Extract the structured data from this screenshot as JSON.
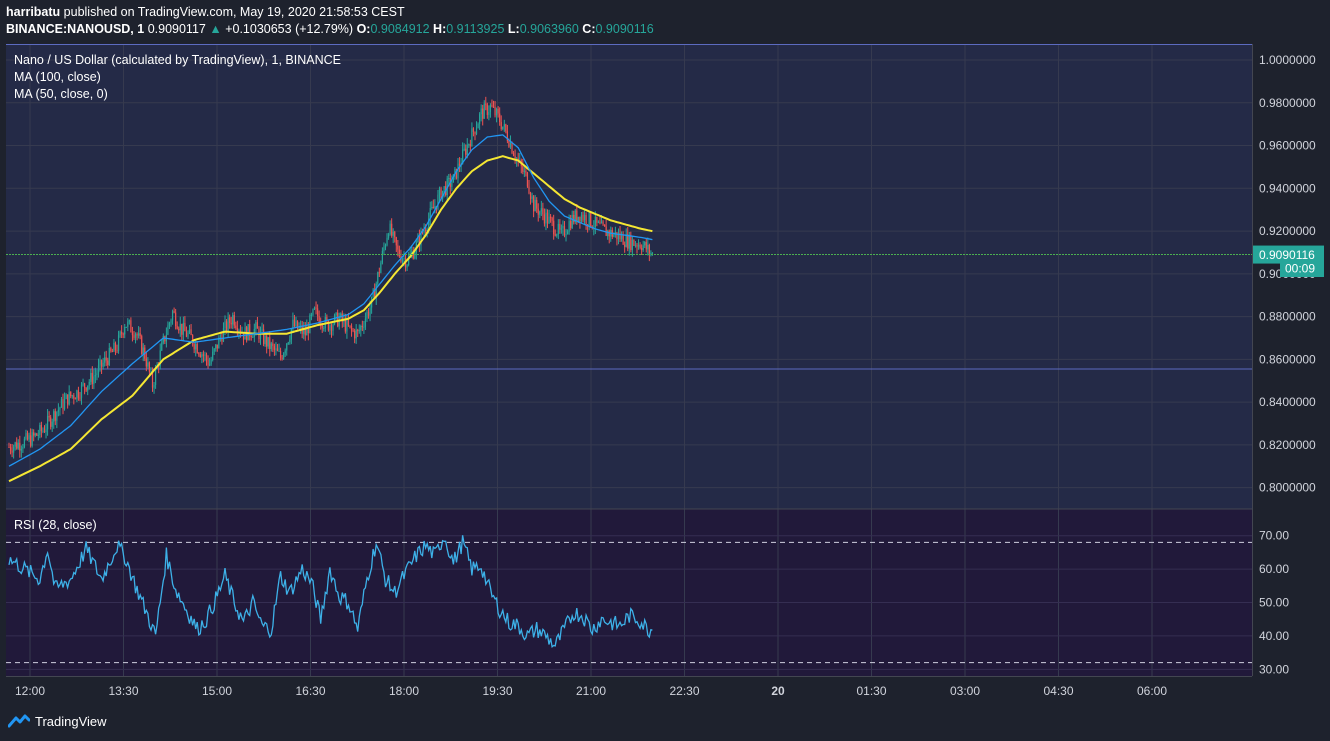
{
  "header": {
    "line1_user": "harribatu",
    "line1_rest": " published on TradingView.com, May 19, 2020 21:58:53 CEST",
    "symbol": "BINANCE:NANOUSD, 1",
    "last": "0.9090117",
    "change": "+0.1030653 (+12.79%)",
    "o_label": "O:",
    "o_value": "0.9084912",
    "h_label": "H:",
    "h_value": "0.9113925",
    "l_label": "L:",
    "l_value": "0.9063960",
    "c_label": "C:",
    "c_value": "0.9090116"
  },
  "price_pane": {
    "title": "Nano / US Dollar (calculated by TradingView), 1, BINANCE",
    "indicator1": "MA (100, close)",
    "indicator2": "MA (50, close, 0)",
    "price_badge": "0.9090116",
    "countdown_badge": "00:09"
  },
  "rsi_pane": {
    "title": "RSI (28, close)"
  },
  "footer": {
    "brand": "TradingView"
  },
  "colors": {
    "background": "#1e222d",
    "price_pane_bg": "#242a47",
    "rsi_pane_bg": "#21193a",
    "candle_up": "#26a69a",
    "candle_down": "#ef5350",
    "ma100": "#f5e733",
    "ma50": "#2196f3",
    "rsi_line": "#3db1e8",
    "last_price_line": "#4caf50"
  },
  "chart_data": {
    "type": "candlestick",
    "x_tick_labels": [
      "12:00",
      "13:30",
      "15:00",
      "16:30",
      "18:00",
      "19:30",
      "21:00",
      "22:30",
      "20",
      "01:30",
      "03:00",
      "04:30",
      "06:00"
    ],
    "price_axis": {
      "ylim": [
        0.79,
        1.0075
      ],
      "tick_labels": [
        "1.0000000",
        "0.9800000",
        "0.9600000",
        "0.9400000",
        "0.9200000",
        "0.9000000",
        "0.8800000",
        "0.8600000",
        "0.8400000",
        "0.8200000",
        "0.8000000"
      ],
      "tick_values": [
        1.0,
        0.98,
        0.96,
        0.94,
        0.92,
        0.9,
        0.88,
        0.86,
        0.84,
        0.82,
        0.8
      ]
    },
    "rsi_axis": {
      "ylim": [
        28,
        78
      ],
      "tick_labels": [
        "70.00",
        "60.00",
        "50.00",
        "40.00",
        "30.00"
      ],
      "tick_values": [
        70,
        60,
        50,
        40,
        30
      ],
      "bands": [
        68,
        32
      ]
    },
    "horizontal_lines": [
      0.8555
    ],
    "last_price": 0.9090116,
    "price_anchors": [
      [
        0,
        0.819
      ],
      [
        8,
        0.821
      ],
      [
        15,
        0.823
      ],
      [
        22,
        0.827
      ],
      [
        30,
        0.835
      ],
      [
        38,
        0.842
      ],
      [
        45,
        0.845
      ],
      [
        55,
        0.852
      ],
      [
        62,
        0.859
      ],
      [
        70,
        0.866
      ],
      [
        75,
        0.877
      ],
      [
        82,
        0.873
      ],
      [
        88,
        0.862
      ],
      [
        93,
        0.848
      ],
      [
        100,
        0.868
      ],
      [
        106,
        0.882
      ],
      [
        112,
        0.874
      ],
      [
        118,
        0.87
      ],
      [
        124,
        0.864
      ],
      [
        130,
        0.858
      ],
      [
        138,
        0.872
      ],
      [
        145,
        0.88
      ],
      [
        152,
        0.872
      ],
      [
        160,
        0.874
      ],
      [
        168,
        0.867
      ],
      [
        176,
        0.861
      ],
      [
        184,
        0.876
      ],
      [
        192,
        0.872
      ],
      [
        198,
        0.882
      ],
      [
        206,
        0.876
      ],
      [
        214,
        0.879
      ],
      [
        222,
        0.873
      ],
      [
        226,
        0.872
      ],
      [
        235,
        0.886
      ],
      [
        240,
        0.902
      ],
      [
        246,
        0.922
      ],
      [
        252,
        0.91
      ],
      [
        258,
        0.906
      ],
      [
        264,
        0.913
      ],
      [
        272,
        0.926
      ],
      [
        280,
        0.938
      ],
      [
        288,
        0.944
      ],
      [
        294,
        0.955
      ],
      [
        300,
        0.965
      ],
      [
        306,
        0.975
      ],
      [
        312,
        0.978
      ],
      [
        318,
        0.972
      ],
      [
        324,
        0.963
      ],
      [
        330,
        0.952
      ],
      [
        336,
        0.944
      ],
      [
        340,
        0.932
      ],
      [
        346,
        0.928
      ],
      [
        352,
        0.923
      ],
      [
        358,
        0.918
      ],
      [
        364,
        0.925
      ],
      [
        370,
        0.928
      ],
      [
        378,
        0.924
      ],
      [
        386,
        0.92
      ],
      [
        394,
        0.918
      ],
      [
        402,
        0.915
      ],
      [
        410,
        0.914
      ],
      [
        417,
        0.909
      ]
    ],
    "rsi_anchors": [
      [
        0,
        63
      ],
      [
        10,
        60
      ],
      [
        20,
        57
      ],
      [
        25,
        66
      ],
      [
        30,
        54
      ],
      [
        40,
        57
      ],
      [
        50,
        66
      ],
      [
        60,
        57
      ],
      [
        70,
        67
      ],
      [
        75,
        64
      ],
      [
        82,
        55
      ],
      [
        90,
        46
      ],
      [
        95,
        40
      ],
      [
        102,
        64
      ],
      [
        108,
        54
      ],
      [
        116,
        47
      ],
      [
        122,
        42
      ],
      [
        128,
        45
      ],
      [
        135,
        52
      ],
      [
        140,
        58
      ],
      [
        146,
        50
      ],
      [
        152,
        44
      ],
      [
        158,
        50
      ],
      [
        164,
        43
      ],
      [
        170,
        42
      ],
      [
        176,
        58
      ],
      [
        182,
        53
      ],
      [
        190,
        60
      ],
      [
        196,
        56
      ],
      [
        202,
        45
      ],
      [
        208,
        60
      ],
      [
        214,
        52
      ],
      [
        220,
        50
      ],
      [
        226,
        42
      ],
      [
        232,
        57
      ],
      [
        238,
        68
      ],
      [
        244,
        57
      ],
      [
        250,
        53
      ],
      [
        256,
        58
      ],
      [
        264,
        64
      ],
      [
        270,
        67
      ],
      [
        276,
        64
      ],
      [
        282,
        70
      ],
      [
        288,
        62
      ],
      [
        294,
        68
      ],
      [
        300,
        60
      ],
      [
        306,
        61
      ],
      [
        312,
        53
      ],
      [
        318,
        48
      ],
      [
        324,
        44
      ],
      [
        330,
        43
      ],
      [
        336,
        40
      ],
      [
        342,
        42
      ],
      [
        348,
        40
      ],
      [
        354,
        37
      ],
      [
        360,
        42
      ],
      [
        366,
        47
      ],
      [
        372,
        46
      ],
      [
        378,
        42
      ],
      [
        384,
        45
      ],
      [
        390,
        44
      ],
      [
        396,
        43
      ],
      [
        402,
        46
      ],
      [
        408,
        45
      ],
      [
        414,
        42
      ],
      [
        417,
        42
      ]
    ],
    "ma100_anchors": [
      [
        0,
        0.803
      ],
      [
        20,
        0.81
      ],
      [
        40,
        0.818
      ],
      [
        60,
        0.832
      ],
      [
        80,
        0.843
      ],
      [
        100,
        0.86
      ],
      [
        120,
        0.869
      ],
      [
        140,
        0.873
      ],
      [
        160,
        0.872
      ],
      [
        180,
        0.872
      ],
      [
        200,
        0.876
      ],
      [
        220,
        0.879
      ],
      [
        230,
        0.883
      ],
      [
        240,
        0.891
      ],
      [
        250,
        0.9
      ],
      [
        260,
        0.908
      ],
      [
        270,
        0.918
      ],
      [
        280,
        0.93
      ],
      [
        290,
        0.94
      ],
      [
        300,
        0.948
      ],
      [
        310,
        0.953
      ],
      [
        320,
        0.955
      ],
      [
        330,
        0.953
      ],
      [
        340,
        0.947
      ],
      [
        350,
        0.941
      ],
      [
        360,
        0.935
      ],
      [
        370,
        0.931
      ],
      [
        380,
        0.928
      ],
      [
        390,
        0.925
      ],
      [
        400,
        0.923
      ],
      [
        410,
        0.921
      ],
      [
        417,
        0.92
      ]
    ],
    "ma50_anchors": [
      [
        0,
        0.81
      ],
      [
        20,
        0.818
      ],
      [
        40,
        0.829
      ],
      [
        60,
        0.845
      ],
      [
        80,
        0.858
      ],
      [
        100,
        0.87
      ],
      [
        120,
        0.868
      ],
      [
        140,
        0.87
      ],
      [
        160,
        0.872
      ],
      [
        180,
        0.874
      ],
      [
        200,
        0.877
      ],
      [
        220,
        0.881
      ],
      [
        230,
        0.886
      ],
      [
        240,
        0.895
      ],
      [
        250,
        0.904
      ],
      [
        260,
        0.912
      ],
      [
        270,
        0.922
      ],
      [
        280,
        0.935
      ],
      [
        290,
        0.948
      ],
      [
        300,
        0.958
      ],
      [
        310,
        0.964
      ],
      [
        320,
        0.965
      ],
      [
        330,
        0.959
      ],
      [
        340,
        0.945
      ],
      [
        350,
        0.934
      ],
      [
        360,
        0.927
      ],
      [
        370,
        0.924
      ],
      [
        380,
        0.921
      ],
      [
        390,
        0.919
      ],
      [
        400,
        0.918
      ],
      [
        410,
        0.917
      ],
      [
        417,
        0.916
      ]
    ]
  }
}
